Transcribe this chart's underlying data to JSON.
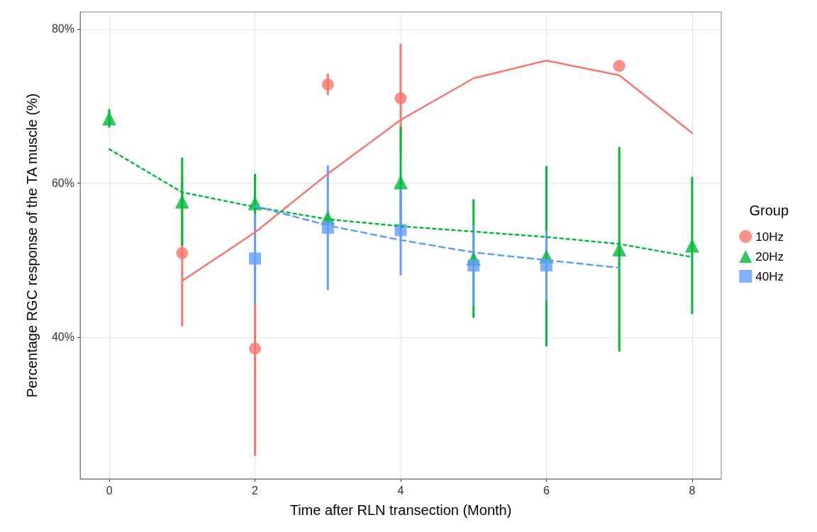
{
  "chart_data": {
    "type": "scatter",
    "xlabel": "Time after RLN transection (Month)",
    "ylabel": "Percentage RGC response of the TA muscle (%)",
    "legend_title": "Group",
    "legend": "right",
    "grid": true,
    "xlim": [
      -0.4,
      8.4
    ],
    "xticks": [
      0,
      2,
      4,
      6,
      8
    ],
    "ylim": [
      21.6,
      82.2
    ],
    "yticks": [
      {
        "value": 40,
        "label": "40%"
      },
      {
        "value": 60,
        "label": "60%"
      },
      {
        "value": 80,
        "label": "80%"
      }
    ],
    "series": [
      {
        "name": "10Hz",
        "type": "scatter",
        "marker": "circle",
        "color": "#f8766d",
        "x": [
          1,
          2,
          3,
          4,
          7
        ],
        "values": [
          50.9,
          38.5,
          72.8,
          71.0,
          75.2
        ],
        "errors": [
          9.5,
          13.9,
          1.4,
          7.1,
          null
        ]
      },
      {
        "name": "20Hz",
        "type": "scatter",
        "marker": "triangle",
        "color": "#00ba38",
        "x": [
          0,
          1,
          2,
          3,
          4,
          5,
          6,
          7,
          8
        ],
        "values": [
          68.4,
          57.6,
          57.4,
          55.5,
          60.1,
          50.2,
          50.5,
          51.4,
          51.9
        ],
        "errors": [
          1.2,
          5.7,
          3.8,
          null,
          7.2,
          7.7,
          11.7,
          13.3,
          8.9
        ]
      },
      {
        "name": "40Hz",
        "type": "scatter",
        "marker": "square",
        "color": "#619cff",
        "x": [
          2,
          3,
          4,
          5,
          6
        ],
        "values": [
          50.2,
          54.2,
          53.9,
          49.3,
          49.3
        ],
        "errors": [
          5.8,
          8.1,
          5.9,
          5.2,
          4.5
        ]
      },
      {
        "type": "line",
        "marker": "none",
        "line_style": "solid",
        "color": "#f8766d",
        "x": [
          1,
          2,
          3,
          4,
          5,
          6,
          7,
          8
        ],
        "values": [
          47.3,
          53.6,
          61.2,
          68.2,
          73.6,
          75.9,
          74.0,
          66.5
        ]
      },
      {
        "type": "line",
        "marker": "none",
        "line_style": "dotted",
        "color": "#00ba38",
        "x": [
          0,
          1,
          2,
          3,
          4,
          5,
          6,
          7,
          8
        ],
        "values": [
          64.4,
          58.8,
          56.9,
          55.3,
          54.4,
          53.7,
          53.0,
          52.1,
          50.4
        ]
      },
      {
        "type": "line",
        "marker": "none",
        "line_style": "dashed",
        "color": "#619cff",
        "x": [
          2,
          3,
          4,
          5,
          6,
          7
        ],
        "values": [
          57.0,
          54.5,
          52.6,
          51.0,
          50.0,
          49.0
        ]
      }
    ]
  }
}
